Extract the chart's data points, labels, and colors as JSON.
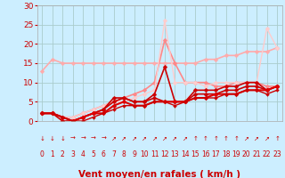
{
  "xlabel": "Vent moyen/en rafales ( km/h )",
  "bg_color": "#cceeff",
  "grid_color": "#aacccc",
  "xlim": [
    -0.5,
    23.5
  ],
  "ylim": [
    0,
    30
  ],
  "yticks": [
    0,
    5,
    10,
    15,
    20,
    25,
    30
  ],
  "xticks": [
    0,
    1,
    2,
    3,
    4,
    5,
    6,
    7,
    8,
    9,
    10,
    11,
    12,
    13,
    14,
    15,
    16,
    17,
    18,
    19,
    20,
    21,
    22,
    23
  ],
  "lines": [
    {
      "x": [
        0,
        1,
        2,
        3,
        4,
        5,
        6,
        7,
        8,
        9,
        10,
        11,
        12,
        13,
        14,
        15,
        16,
        17,
        18,
        19,
        20,
        21,
        22,
        23
      ],
      "y": [
        13,
        16,
        15,
        15,
        15,
        15,
        15,
        15,
        15,
        15,
        15,
        15,
        15,
        15,
        15,
        15,
        16,
        16,
        17,
        17,
        18,
        18,
        18,
        19
      ],
      "color": "#ffaaaa",
      "lw": 1.2,
      "marker": "D",
      "ms": 2.5
    },
    {
      "x": [
        0,
        1,
        2,
        3,
        4,
        5,
        6,
        7,
        8,
        9,
        10,
        11,
        12,
        13,
        14,
        15,
        16,
        17,
        18,
        19,
        20,
        21,
        22,
        23
      ],
      "y": [
        2,
        2,
        1,
        1,
        2,
        3,
        4,
        5,
        6,
        7,
        8,
        10,
        21,
        15,
        10,
        10,
        10,
        9,
        9,
        10,
        10,
        10,
        9,
        9
      ],
      "color": "#ff8888",
      "lw": 1.2,
      "marker": "D",
      "ms": 2.5
    },
    {
      "x": [
        0,
        1,
        2,
        3,
        4,
        5,
        6,
        7,
        8,
        9,
        10,
        11,
        12,
        13,
        14,
        15,
        16,
        17,
        18,
        19,
        20,
        21,
        22,
        23
      ],
      "y": [
        2,
        2,
        1,
        1,
        2,
        3,
        4,
        5,
        5,
        6,
        7,
        8,
        26,
        10,
        10,
        10,
        9,
        10,
        10,
        10,
        10,
        10,
        24,
        19
      ],
      "color": "#ffcccc",
      "lw": 1.0,
      "marker": "D",
      "ms": 2.5
    },
    {
      "x": [
        0,
        1,
        2,
        3,
        4,
        5,
        6,
        7,
        8,
        9,
        10,
        11,
        12,
        13,
        14,
        15,
        16,
        17,
        18,
        19,
        20,
        21,
        22,
        23
      ],
      "y": [
        2,
        2,
        1,
        0,
        1,
        2,
        3,
        6,
        6,
        5,
        5,
        7,
        14,
        5,
        5,
        8,
        8,
        8,
        9,
        9,
        10,
        10,
        8,
        9
      ],
      "color": "#cc0000",
      "lw": 1.2,
      "marker": "D",
      "ms": 2.5
    },
    {
      "x": [
        0,
        1,
        2,
        3,
        4,
        5,
        6,
        7,
        8,
        9,
        10,
        11,
        12,
        13,
        14,
        15,
        16,
        17,
        18,
        19,
        20,
        21,
        22,
        23
      ],
      "y": [
        2,
        2,
        0,
        0,
        1,
        2,
        3,
        5,
        6,
        5,
        5,
        6,
        5,
        5,
        5,
        7,
        7,
        7,
        8,
        8,
        9,
        9,
        8,
        9
      ],
      "color": "#cc0000",
      "lw": 1.2,
      "marker": "D",
      "ms": 2.5
    },
    {
      "x": [
        0,
        1,
        2,
        3,
        4,
        5,
        6,
        7,
        8,
        9,
        10,
        11,
        12,
        13,
        14,
        15,
        16,
        17,
        18,
        19,
        20,
        21,
        22,
        23
      ],
      "y": [
        2,
        2,
        1,
        0,
        1,
        2,
        2,
        4,
        5,
        4,
        4,
        5,
        5,
        5,
        5,
        6,
        6,
        7,
        7,
        7,
        8,
        8,
        8,
        9
      ],
      "color": "#dd0000",
      "lw": 1.5,
      "marker": "D",
      "ms": 2.5
    },
    {
      "x": [
        0,
        1,
        2,
        3,
        4,
        5,
        6,
        7,
        8,
        9,
        10,
        11,
        12,
        13,
        14,
        15,
        16,
        17,
        18,
        19,
        20,
        21,
        22,
        23
      ],
      "y": [
        2,
        2,
        1,
        0,
        0,
        1,
        2,
        3,
        4,
        4,
        4,
        5,
        5,
        4,
        5,
        6,
        6,
        6,
        7,
        7,
        8,
        8,
        7,
        8
      ],
      "color": "#cc0000",
      "lw": 1.0,
      "marker": "D",
      "ms": 2.0
    }
  ],
  "arrow_symbols": {
    "0": "↓",
    "1": "↓",
    "2": "↓",
    "3": "→",
    "4": "→",
    "5": "→",
    "6": "→",
    "7": "↗",
    "8": "↗",
    "9": "↗",
    "10": "↗",
    "11": "↗",
    "12": "↗",
    "13": "↗",
    "14": "↗",
    "15": "↑",
    "16": "↑",
    "17": "↑",
    "18": "↑",
    "19": "↑",
    "20": "↗",
    "21": "↗",
    "22": "↗",
    "23": "↑"
  },
  "arrow_color": "#cc0000",
  "xlabel_color": "#cc0000",
  "tick_color": "#cc0000",
  "xlabel_fontsize": 7.5,
  "tick_fontsize": 6.5
}
